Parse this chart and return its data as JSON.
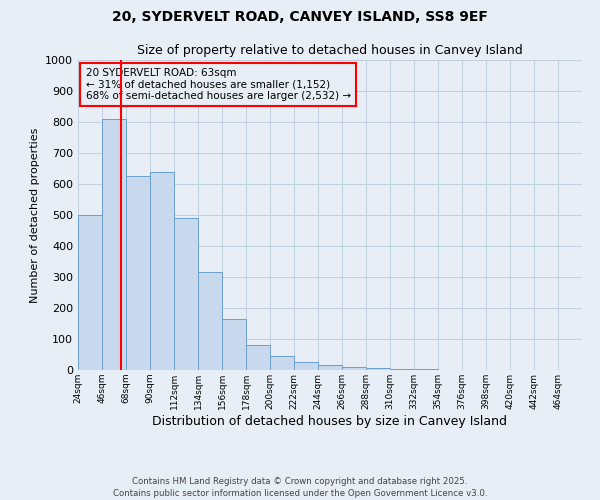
{
  "title1": "20, SYDERVELT ROAD, CANVEY ISLAND, SS8 9EF",
  "title2": "Size of property relative to detached houses in Canvey Island",
  "xlabel": "Distribution of detached houses by size in Canvey Island",
  "ylabel": "Number of detached properties",
  "bin_labels": [
    "24sqm",
    "46sqm",
    "68sqm",
    "90sqm",
    "112sqm",
    "134sqm",
    "156sqm",
    "178sqm",
    "200sqm",
    "222sqm",
    "244sqm",
    "266sqm",
    "288sqm",
    "310sqm",
    "332sqm",
    "354sqm",
    "376sqm",
    "398sqm",
    "420sqm",
    "442sqm",
    "464sqm"
  ],
  "bin_edges": [
    24,
    46,
    68,
    90,
    112,
    134,
    156,
    178,
    200,
    222,
    244,
    266,
    288,
    310,
    332,
    354,
    376,
    398,
    420,
    442,
    464
  ],
  "bar_heights": [
    500,
    810,
    625,
    640,
    490,
    315,
    165,
    80,
    45,
    25,
    15,
    10,
    5,
    3,
    2,
    1,
    1,
    0,
    0,
    0,
    0
  ],
  "bar_color": "#c8d9ee",
  "bar_edge_color": "#6a9fd0",
  "grid_color": "#c0cfdf",
  "bg_color": "#e8eef5",
  "red_line_x": 63,
  "annotation_text_line1": "20 SYDERVELT ROAD: 63sqm",
  "annotation_text_line2": "← 31% of detached houses are smaller (1,152)",
  "annotation_text_line3": "68% of semi-detached houses are larger (2,532) →",
  "annotation_box_color": "#ff0000",
  "ylim": [
    0,
    1000
  ],
  "yticks": [
    0,
    100,
    200,
    300,
    400,
    500,
    600,
    700,
    800,
    900,
    1000
  ],
  "footer_line1": "Contains HM Land Registry data © Crown copyright and database right 2025.",
  "footer_line2": "Contains public sector information licensed under the Open Government Licence v3.0."
}
